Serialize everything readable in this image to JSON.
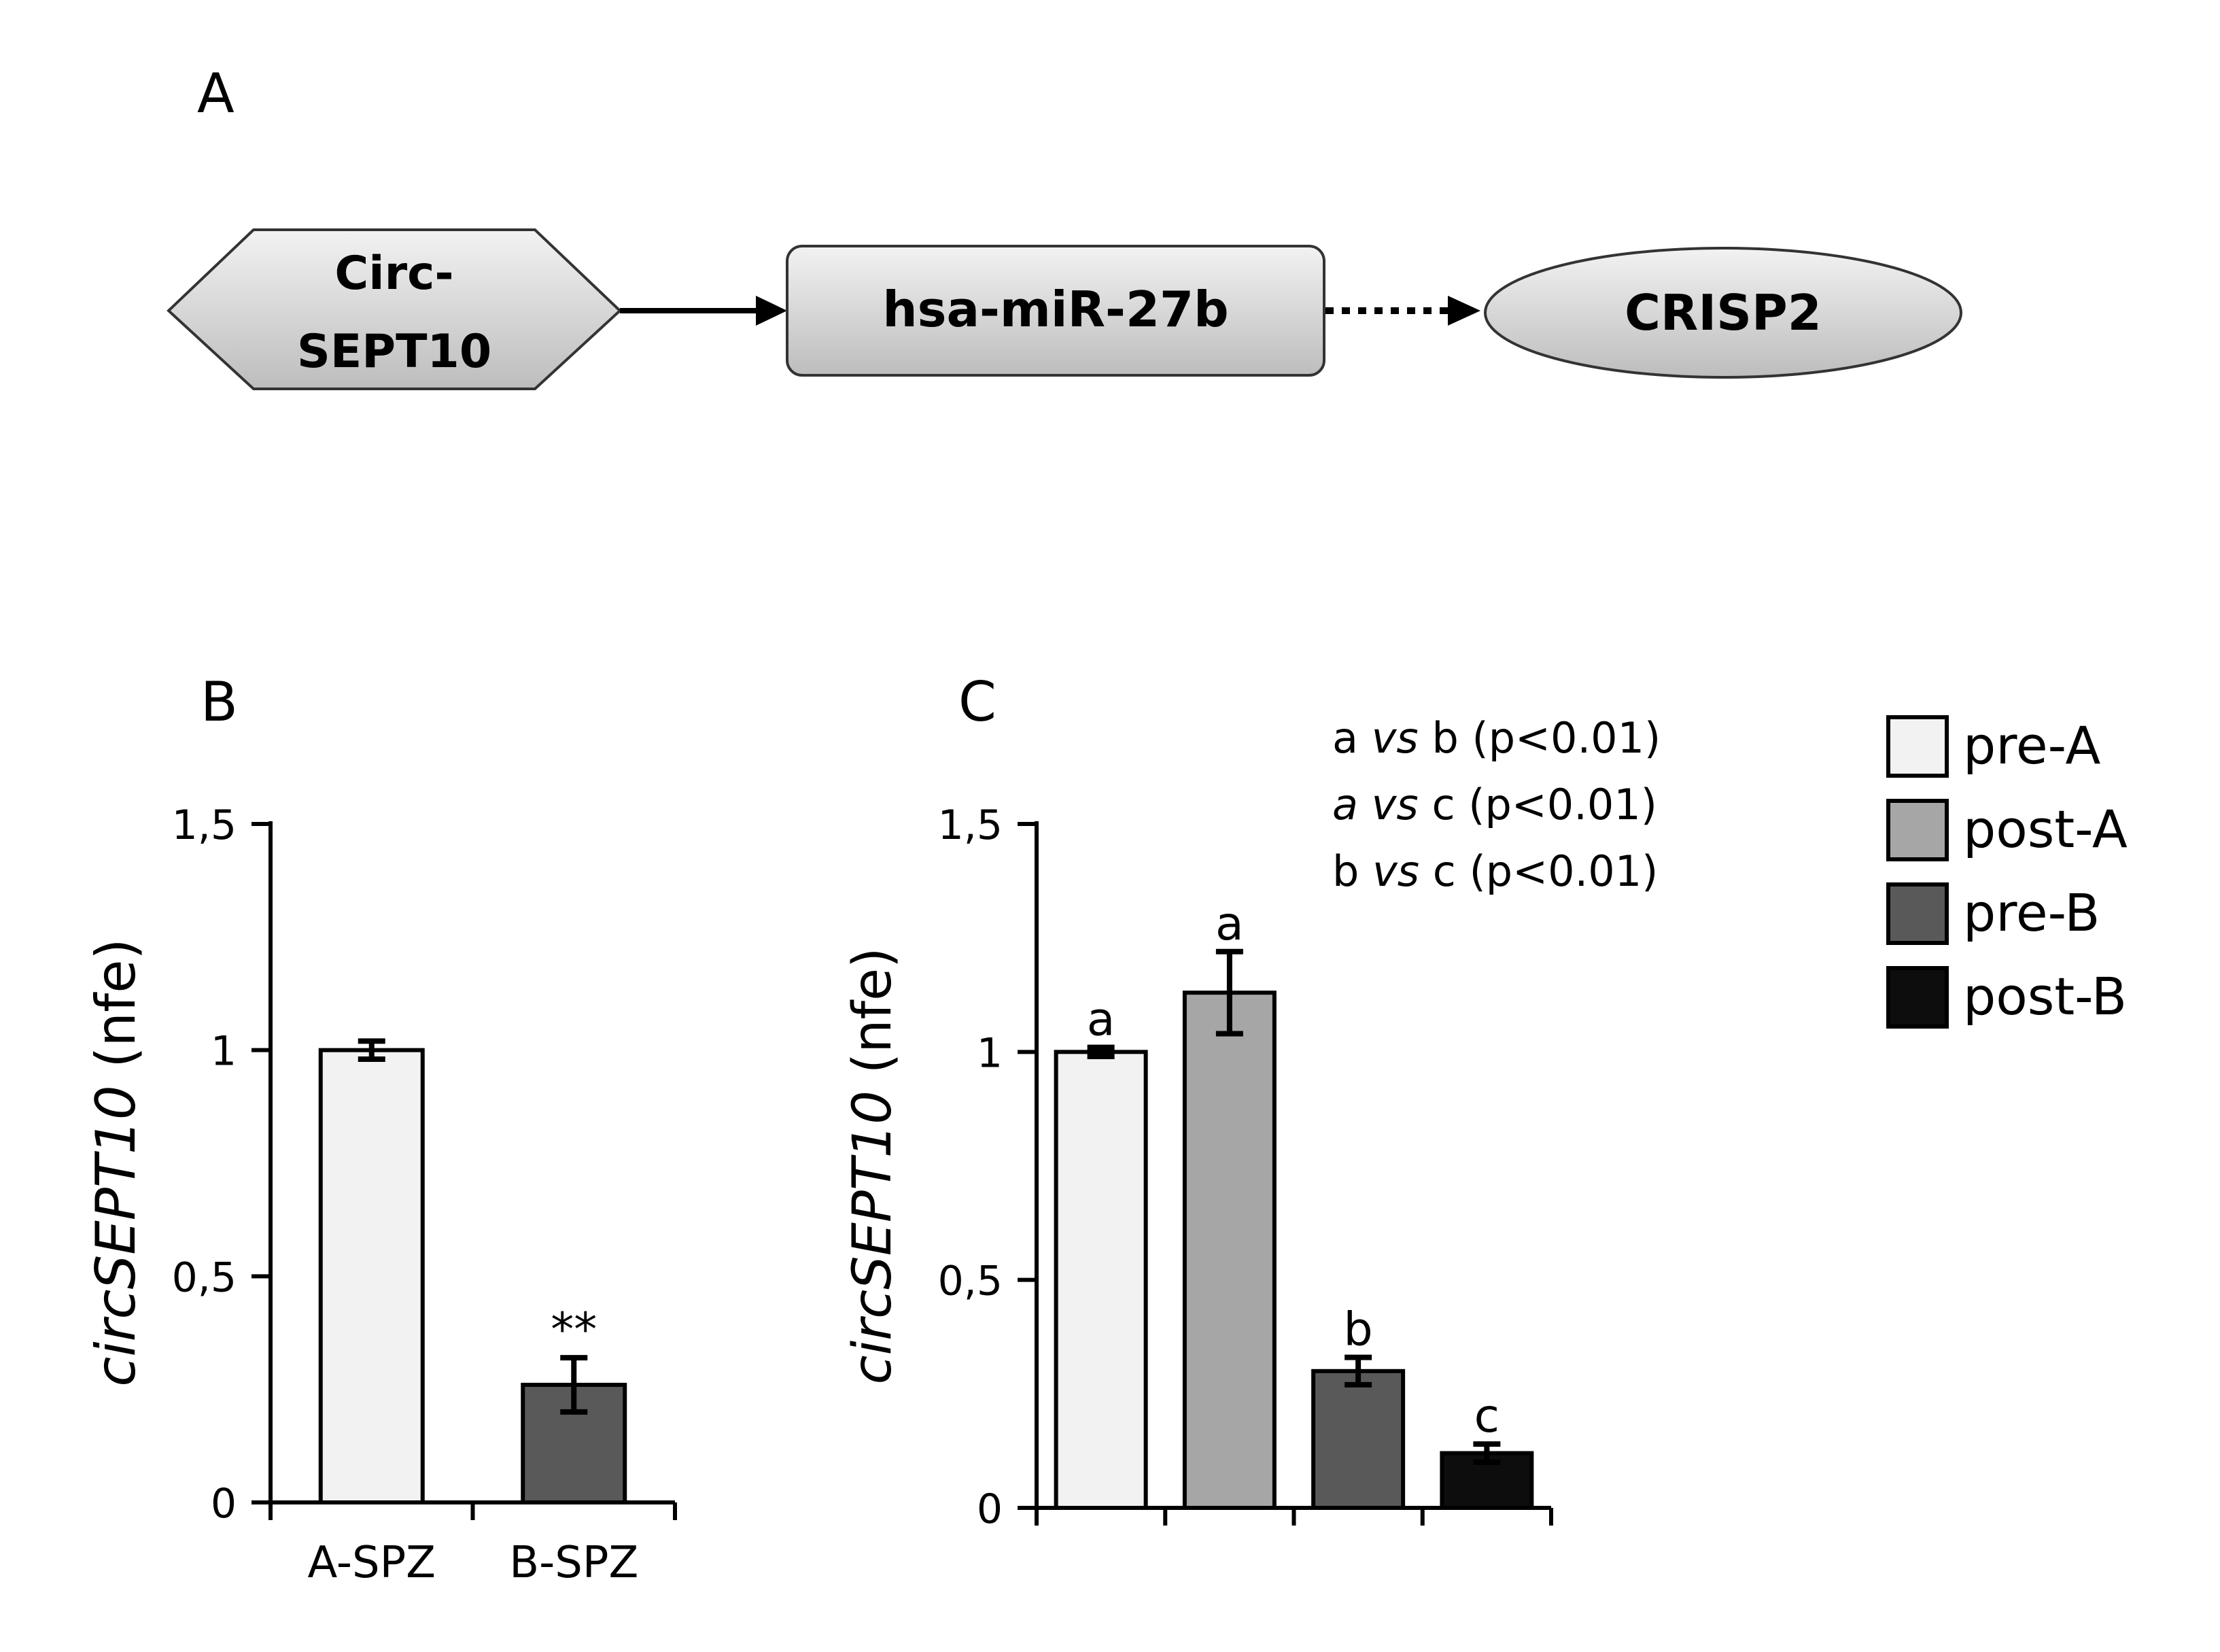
{
  "panel_labels": {
    "a": "A",
    "b": "B",
    "c": "C"
  },
  "pathway": {
    "nodes": [
      {
        "lines": [
          "Circ-",
          "SEPT10"
        ],
        "shape": "hexagon"
      },
      {
        "lines": [
          "hsa-miR-27b"
        ],
        "shape": "rounded-rectangle"
      },
      {
        "lines": [
          "CRISP2"
        ],
        "shape": "ellipse"
      }
    ],
    "arrows": [
      {
        "from": 0,
        "to": 1,
        "style": "solid"
      },
      {
        "from": 1,
        "to": 2,
        "style": "dotted"
      }
    ],
    "colors": {
      "node_fill_light": "#f0f0f0",
      "node_fill_dark": "#bdbdbd"
    }
  },
  "ylabel": {
    "italic": "circSEPT10",
    "plain": " (nfe)"
  },
  "chart_data": [
    {
      "type": "bar",
      "panel": "B",
      "categories": [
        "A-SPZ",
        "B-SPZ"
      ],
      "values": [
        1.0,
        0.26
      ],
      "errors": [
        0.02,
        0.06
      ],
      "annotations": [
        "",
        "**"
      ],
      "colors": [
        "#f2f2f2",
        "#595959"
      ],
      "ylim": [
        0,
        1.5
      ],
      "yticks": [
        0,
        0.5,
        1,
        1.5
      ],
      "ytick_labels": [
        "0",
        "0,5",
        "1",
        "1,5"
      ]
    },
    {
      "type": "bar",
      "panel": "C",
      "categories": [
        "pre-A",
        "post-A",
        "pre-B",
        "post-B"
      ],
      "values": [
        1.0,
        1.13,
        0.3,
        0.12
      ],
      "errors": [
        0.01,
        0.09,
        0.03,
        0.02
      ],
      "annotations": [
        "a",
        "a",
        "b",
        "c"
      ],
      "colors": [
        "#f2f2f2",
        "#a6a6a6",
        "#595959",
        "#0d0d0d"
      ],
      "ylim": [
        0,
        1.5
      ],
      "yticks": [
        0,
        0.5,
        1,
        1.5
      ],
      "ytick_labels": [
        "0",
        "0,5",
        "1",
        "1,5"
      ],
      "stats": [
        {
          "g1": "a",
          "vs": "vs",
          "g2": "b",
          "p": "(p<0.01)"
        },
        {
          "g1": "a",
          "vs": "vs",
          "g2": "c",
          "p": "(p<0.01)"
        },
        {
          "g1": "b",
          "vs": "vs",
          "g2": "c",
          "p": "(p<0.01)"
        }
      ],
      "legend": {
        "position": "right",
        "entries": [
          {
            "label": "pre-A",
            "color": "#f2f2f2"
          },
          {
            "label": "post-A",
            "color": "#a6a6a6"
          },
          {
            "label": "pre-B",
            "color": "#595959"
          },
          {
            "label": "post-B",
            "color": "#0d0d0d"
          }
        ]
      }
    }
  ]
}
